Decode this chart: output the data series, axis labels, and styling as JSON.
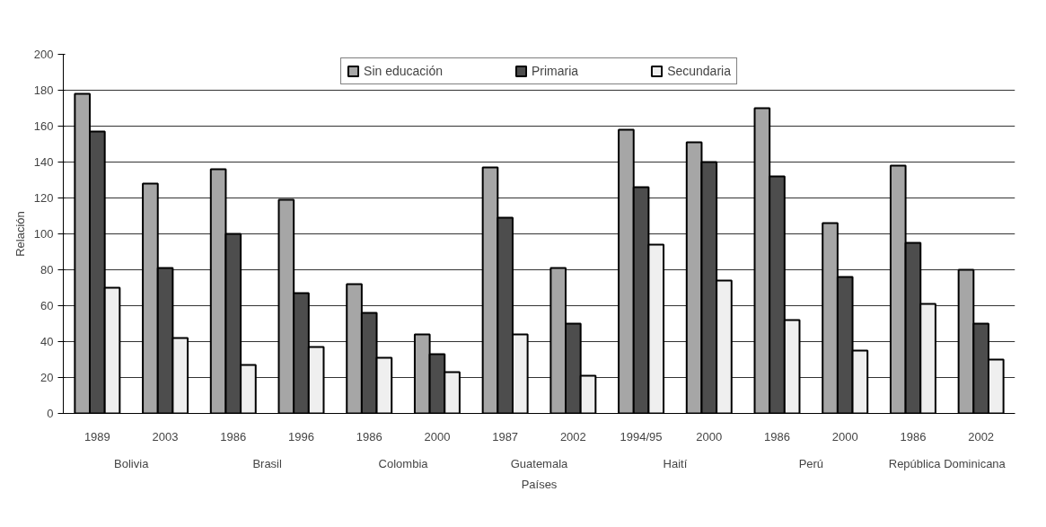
{
  "chart_data": {
    "type": "bar",
    "ylabel": "Relación",
    "xlabel": "Países",
    "categories": [
      "1989",
      "2003",
      "1986",
      "1996",
      "1986",
      "2000",
      "1987",
      "2002",
      "1994/95",
      "2000",
      "1986",
      "2000",
      "1986",
      "2002"
    ],
    "annotations": [
      "Bolivia",
      "Brasil",
      "Colombia",
      "Guatemala",
      "Haití",
      "Perú",
      "República Dominicana"
    ],
    "series": [
      {
        "name": "Sin educación",
        "color": "#a6a6a6",
        "values": [
          178,
          128,
          136,
          119,
          72,
          44,
          137,
          81,
          158,
          151,
          170,
          106,
          138,
          80
        ]
      },
      {
        "name": "Primaria",
        "color": "#4d4d4d",
        "values": [
          157,
          81,
          100,
          67,
          56,
          33,
          109,
          50,
          126,
          140,
          132,
          76,
          95,
          50
        ]
      },
      {
        "name": "Secundaria",
        "color": "#efefef",
        "values": [
          70,
          42,
          27,
          37,
          31,
          23,
          44,
          21,
          94,
          74,
          52,
          35,
          61,
          30
        ]
      }
    ],
    "ylim": [
      0,
      200
    ],
    "yticks": [
      0,
      20,
      40,
      60,
      80,
      100,
      120,
      140,
      160,
      180,
      200
    ],
    "grid": "y",
    "legend": "top"
  }
}
